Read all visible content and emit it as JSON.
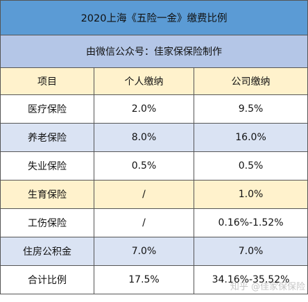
{
  "title": "2020上海《五险一金》缴费比例",
  "subtitle": "由微信公众号：佳家保保险制作",
  "headers": [
    "项目",
    "个人缴纳",
    "公司缴纳"
  ],
  "rows": [
    {
      "item": "医疗保险",
      "personal": "2.0%",
      "company": "9.5%"
    },
    {
      "item": "养老保险",
      "personal": "8.0%",
      "company": "16.0%"
    },
    {
      "item": "失业保险",
      "personal": "0.5%",
      "company": "0.5%"
    },
    {
      "item": "生育保险",
      "personal": "/",
      "company": "1.0%"
    },
    {
      "item": "工伤保险",
      "personal": "/",
      "company": "0.16%-1.52%"
    },
    {
      "item": "住房公积金",
      "personal": "7.0%",
      "company": "7.0%"
    },
    {
      "item": "合计比例",
      "personal": "17.5%",
      "company": "34.16%-35.52%"
    }
  ],
  "colors": {
    "title_bg": "#5b9bd5",
    "subtitle_bg": "#b4c6e7",
    "header_bg": "#fff2cc",
    "blue_row": "#dae3f3",
    "yellow_row": "#fff2cc"
  },
  "watermark": "知乎 @佳家保保险"
}
